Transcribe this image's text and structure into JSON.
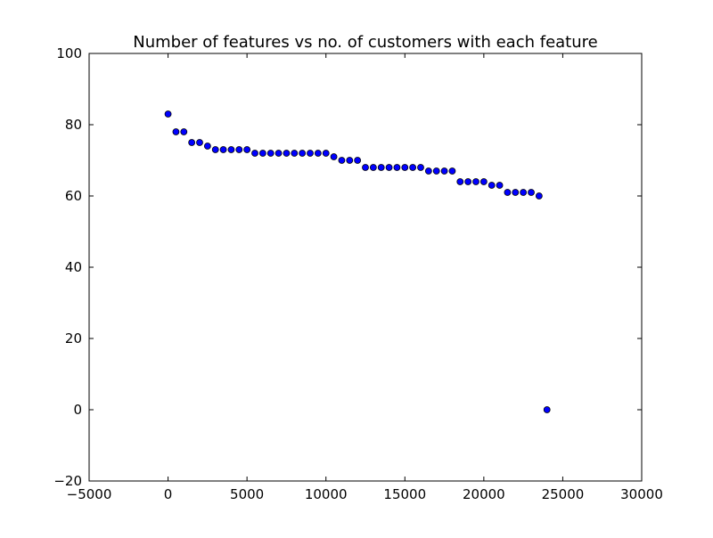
{
  "chart_data": {
    "type": "scatter",
    "title": "Number of features vs no. of customers with each feature",
    "xlabel": "",
    "ylabel": "",
    "xlim": [
      -5000,
      30000
    ],
    "ylim": [
      -20,
      100
    ],
    "x_ticks": [
      -5000,
      0,
      5000,
      10000,
      15000,
      20000,
      25000,
      30000
    ],
    "y_ticks": [
      -20,
      0,
      20,
      40,
      60,
      80,
      100
    ],
    "x_tick_labels": [
      "−5000",
      "0",
      "5000",
      "10000",
      "15000",
      "20000",
      "25000",
      "30000"
    ],
    "y_tick_labels": [
      "−20",
      "0",
      "20",
      "40",
      "60",
      "80",
      "100"
    ],
    "grid": false,
    "marker_color": "#0000ff",
    "marker_edge_color": "#000000",
    "series": [
      {
        "x": [
          0,
          500,
          1000,
          1500,
          2000,
          2500,
          3000,
          3500,
          4000,
          4500,
          5000,
          5500,
          6000,
          6500,
          7000,
          7500,
          8000,
          8500,
          9000,
          9500,
          10000,
          10500,
          11000,
          11500,
          12000,
          12500,
          13000,
          13500,
          14000,
          14500,
          15000,
          15500,
          16000,
          16500,
          17000,
          17500,
          18000,
          18500,
          19000,
          19500,
          20000,
          20500,
          21000,
          21500,
          22000,
          22500,
          23000,
          23500,
          24000
        ],
        "y": [
          83,
          78,
          78,
          75,
          75,
          74,
          73,
          73,
          73,
          73,
          73,
          72,
          72,
          72,
          72,
          72,
          72,
          72,
          72,
          72,
          72,
          71,
          70,
          70,
          70,
          68,
          68,
          68,
          68,
          68,
          68,
          68,
          68,
          67,
          67,
          67,
          67,
          64,
          64,
          64,
          64,
          63,
          63,
          61,
          61,
          61,
          61,
          60,
          0
        ]
      }
    ]
  }
}
